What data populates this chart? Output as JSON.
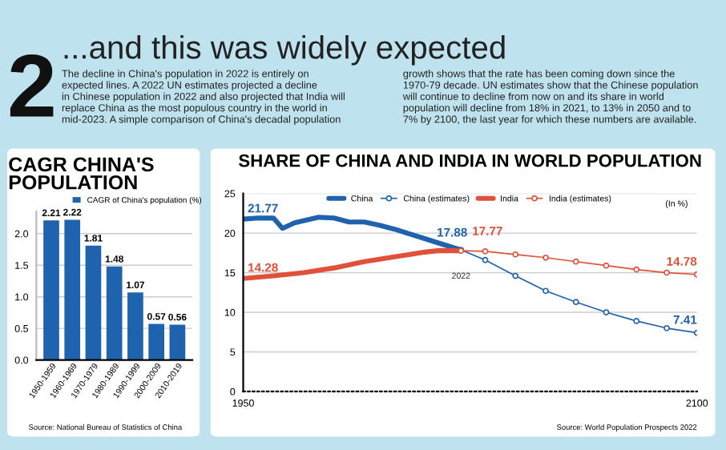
{
  "chart_data": [
    {
      "type": "other",
      "title": "...and this was widely expected",
      "annotations": [
        "2",
        "The decline in China's population in 2022 is entirely on\nexpected lines. A 2022 UN estimates projected a decline\nin Chinese population in 2022 and also projected that India will\nreplace China as the most populous country in the world in\nmid-2023. A simple comparison of China's decadal population",
        "growth shows that the rate has been coming down since the\n1970-79 decade. UN estimates show that the Chinese population\nwill continue to decline from now on and its share in world\npopulation will decline from 18% in 2021, to 13% in 2050 and to\n7% by 2100, the last year for which these numbers are available."
      ]
    },
    {
      "type": "bar",
      "title": "CAGR CHINA'S\nPOPULATION",
      "categories": [
        "1950-1959",
        "1960-1969",
        "1970-1979",
        "1980-1989",
        "1990-1999",
        "2000-2009",
        "2010-2019"
      ],
      "series": [
        {
          "name": "CAGR of China's population (%)",
          "color": "#1f62ad",
          "values": [
            2.21,
            2.22,
            1.81,
            1.48,
            1.07,
            0.57,
            0.56
          ]
        }
      ],
      "data_labels": true,
      "ylim": [
        0,
        2.35
      ],
      "yticks": [
        {
          "value": 0,
          "label": "0.0"
        },
        {
          "value": 0.5,
          "label": "0.5"
        },
        {
          "value": 1,
          "label": "1.0"
        },
        {
          "value": 1.5,
          "label": "1.5"
        },
        {
          "value": 2,
          "label": "2.0"
        }
      ],
      "grid": "y",
      "legend": "top right",
      "annotations": [
        "Source: National Bureau of Statistics of China"
      ]
    },
    {
      "type": "line",
      "title": "SHARE OF CHINA AND INDIA IN WORLD POPULATION",
      "series": [
        {
          "name": "China",
          "color": "#1f62ad",
          "x": [
            1950,
            1955,
            1960,
            1963,
            1967,
            1975,
            1980,
            1985,
            1990,
            1995,
            2000,
            2005,
            2010,
            2015,
            2022
          ],
          "values": [
            21.77,
            21.9,
            21.9,
            20.6,
            21.3,
            22.0,
            21.9,
            21.4,
            21.4,
            21.0,
            20.5,
            19.9,
            19.3,
            18.7,
            17.88
          ],
          "marker": "none"
        },
        {
          "name": "China (estimates)",
          "color": "#1f62ad",
          "x": [
            2022,
            2030,
            2040,
            2050,
            2060,
            2070,
            2080,
            2090,
            2100
          ],
          "values": [
            17.88,
            16.6,
            14.6,
            12.7,
            11.3,
            10.0,
            8.9,
            8.0,
            7.41
          ],
          "marker": "circle"
        },
        {
          "name": "India",
          "color": "#e0503a",
          "x": [
            1950,
            1960,
            1970,
            1980,
            1990,
            2000,
            2010,
            2015,
            2022
          ],
          "values": [
            14.28,
            14.6,
            15.0,
            15.6,
            16.4,
            17.0,
            17.6,
            17.8,
            17.77
          ],
          "marker": "none"
        },
        {
          "name": "India (estimates)",
          "color": "#e0503a",
          "x": [
            2022,
            2030,
            2040,
            2050,
            2060,
            2070,
            2080,
            2090,
            2100
          ],
          "values": [
            17.77,
            17.7,
            17.3,
            16.9,
            16.4,
            15.9,
            15.4,
            15.0,
            14.78
          ],
          "marker": "circle"
        }
      ],
      "xlim": [
        1950,
        2100
      ],
      "xticks": [
        1950,
        2100
      ],
      "ylim": [
        0,
        25
      ],
      "yticks": [
        0,
        5,
        10,
        15,
        20,
        25
      ],
      "grid": "y",
      "legend": "top",
      "annotations": [
        {
          "text": "21.77",
          "x": 1950,
          "y": 21.77
        },
        {
          "text": "14.28",
          "x": 1950,
          "y": 14.28
        },
        {
          "text": "17.88",
          "x": 2022,
          "y": 17.88
        },
        {
          "text": "17.77",
          "x": 2022,
          "y": 17.77
        },
        {
          "text": "14.78",
          "x": 2100,
          "y": 14.78
        },
        {
          "text": "7.41",
          "x": 2100,
          "y": 7.41
        },
        "(In %)",
        "2022",
        "Source: World Population Prospects 2022"
      ]
    }
  ]
}
